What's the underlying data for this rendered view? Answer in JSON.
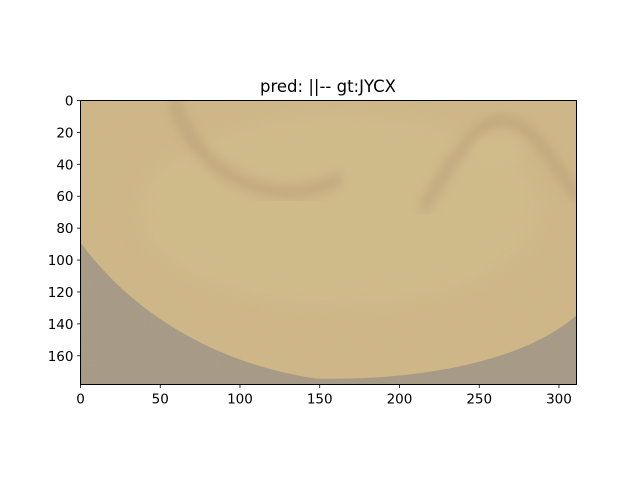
{
  "chart_data": {
    "type": "heatmap",
    "title": "pred: ||-- gt:JYCX",
    "xlabel": "",
    "ylabel": "",
    "xlim": [
      0,
      311
    ],
    "ylim": [
      178,
      0
    ],
    "xticks": [
      0,
      50,
      100,
      150,
      200,
      250,
      300
    ],
    "yticks": [
      0,
      20,
      40,
      60,
      80,
      100,
      120,
      140,
      160
    ],
    "grid": false,
    "image": {
      "width": 311,
      "height": 178,
      "colors": {
        "sand_light": "#d3bd8a",
        "sand": "#cfb785",
        "sand_shadow": "#bea378",
        "gray_background": "#a59985"
      }
    }
  }
}
